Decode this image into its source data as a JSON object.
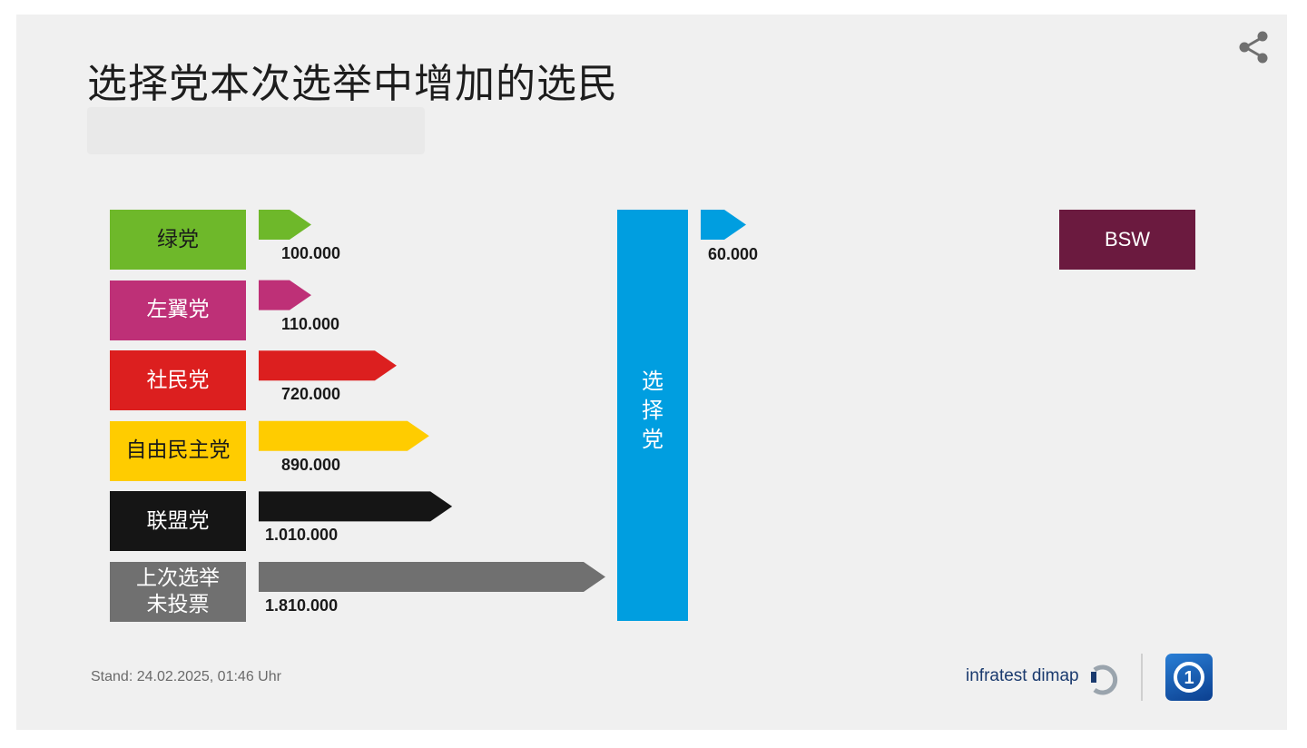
{
  "title": "选择党本次选举中增加的选民",
  "share_icon": "share-icon",
  "chart_data": {
    "type": "bar",
    "title": "选择党本次选举中增加的选民",
    "target": "选择党",
    "target_color": "#009ee0",
    "sources": [
      {
        "name": "绿党",
        "value": 100000,
        "label": "100.000",
        "color": "#6eb82a",
        "text_color": "#1a1a1a"
      },
      {
        "name": "左翼党",
        "value": 110000,
        "label": "110.000",
        "color": "#be3077",
        "text_color": "#ffffff"
      },
      {
        "name": "社民党",
        "value": 720000,
        "label": "720.000",
        "color": "#dc1f1f",
        "text_color": "#ffffff"
      },
      {
        "name": "自由民主党",
        "value": 890000,
        "label": "890.000",
        "color": "#ffcc00",
        "text_color": "#1a1a1a"
      },
      {
        "name": "联盟党",
        "value": 1010000,
        "label": "1.010.000",
        "color": "#151515",
        "text_color": "#ffffff"
      },
      {
        "name": "上次选举\n未投票",
        "value": 1810000,
        "label": "1.810.000",
        "color": "#707070",
        "text_color": "#ffffff"
      }
    ],
    "outflow": {
      "name": "BSW",
      "value": 60000,
      "label": "60.000",
      "color": "#6b1a3f",
      "arrow_color": "#009ee0"
    }
  },
  "footer": {
    "stand": "Stand:  24.02.2025, 01:46 Uhr",
    "source": "infratest dimap"
  }
}
